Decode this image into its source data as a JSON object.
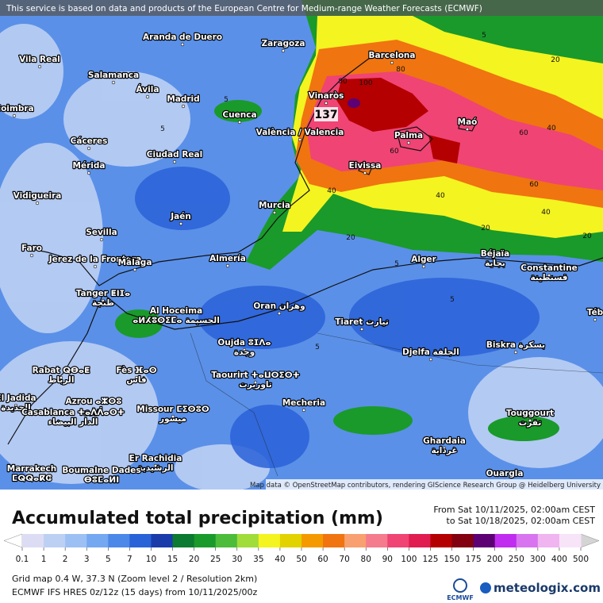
{
  "banner": "This service is based on data and products of the European Centre for Medium-range Weather Forecasts (ECMWF)",
  "map": {
    "max_label": "137",
    "credit": "Map data © OpenStreetMap contributors, rendering GIScience Research Group @ Heidelberg University",
    "cities": [
      {
        "name": "Aranda de Duero"
      },
      {
        "name": "Zaragoza"
      },
      {
        "name": "Vila Real"
      },
      {
        "name": "Barcelona"
      },
      {
        "name": "Salamanca"
      },
      {
        "name": "Ávila"
      },
      {
        "name": "Madrid"
      },
      {
        "name": "Vinaròs"
      },
      {
        "name": "Coimbra"
      },
      {
        "name": "Cuenca"
      },
      {
        "name": "Maó"
      },
      {
        "name": "València / Valencia"
      },
      {
        "name": "Palma"
      },
      {
        "name": "Cáceres"
      },
      {
        "name": "Ciudad Real"
      },
      {
        "name": "Mérida"
      },
      {
        "name": "Eivissa"
      },
      {
        "name": "Vidigueira"
      },
      {
        "name": "Murcia"
      },
      {
        "name": "Jaén"
      },
      {
        "name": "Sevilla"
      },
      {
        "name": "Faro"
      },
      {
        "name": "Jerez de la Frontera"
      },
      {
        "name": "Málaga"
      },
      {
        "name": "Almería"
      },
      {
        "name": "Alger"
      },
      {
        "name": "Béjaïa",
        "alt": "بجاية"
      },
      {
        "name": "Constantine",
        "alt": "قسنطينة"
      },
      {
        "name": "Tanger ⵟⵏⵊⴰ",
        "alt": "طنجة"
      },
      {
        "name": "Al Hoceima",
        "alt": "ⴰⵍⵃⵓⵙⵉⵎⴰ الحسيمة"
      },
      {
        "name": "Oran وهران"
      },
      {
        "name": "Tiaret تيارت"
      },
      {
        "name": "Oujda ⵓⵊⴷⴰ",
        "alt": "وجدة"
      },
      {
        "name": "Biskra بسكرة"
      },
      {
        "name": "Djelfa الجلفة"
      },
      {
        "name": "Rabat ⵕⴱⴰⵟ",
        "alt": "الرباط"
      },
      {
        "name": "Fès ⴼⴰⵙ",
        "alt": "فاس"
      },
      {
        "name": "Taourirt ⵜⴰⵡⵔⵉⵔⵜ",
        "alt": "تاوريرت"
      },
      {
        "name": "Azrou ⴰⵣⵔⵓ",
        "alt": "ازرو"
      },
      {
        "name": "Missour ⵎⵉⵙⵓⵔ",
        "alt": "ميسور"
      },
      {
        "name": "Mecheria"
      },
      {
        "name": "El Jadida",
        "alt": "الجديدة"
      },
      {
        "name": "Casablanca ⵜⴰⴷⴷⴰⵔⵜ",
        "alt": "الدار البيضاء"
      },
      {
        "name": "Touggourt",
        "alt": "تقرت"
      },
      {
        "name": "Ghardaia",
        "alt": "غرداية"
      },
      {
        "name": "Er Rachidia",
        "alt": "الرشيدية"
      },
      {
        "name": "Marrakech",
        "alt": "ⵎⵕⵕⴰⴽⵛ"
      },
      {
        "name": "Boumalne Dades",
        "alt": "ⴱⵓⵎⴰⵍⵏ"
      },
      {
        "name": "Ouargla"
      },
      {
        "name": "Téb"
      }
    ],
    "contour_labels": [
      "5",
      "5",
      "5",
      "20",
      "20",
      "40",
      "40",
      "40",
      "60",
      "60",
      "60",
      "80",
      "80",
      "100",
      "20",
      "5",
      "5",
      "5",
      "40",
      "20"
    ]
  },
  "legend": {
    "title": "Accumulated total precipitation (mm)",
    "period": [
      "From Sat 10/11/2025, 02:00am CEST",
      "to Sat 10/18/2025, 02:00am CEST"
    ],
    "levels": [
      "0.1",
      "1",
      "2",
      "3",
      "5",
      "7",
      "10",
      "15",
      "20",
      "25",
      "30",
      "35",
      "40",
      "50",
      "60",
      "70",
      "80",
      "90",
      "100",
      "125",
      "150",
      "175",
      "200",
      "250",
      "300",
      "400",
      "500"
    ],
    "colors": [
      "#ffffff",
      "#dcdcf4",
      "#bcd0f4",
      "#9cc0f4",
      "#74a8f0",
      "#4c88e8",
      "#2a62d8",
      "#1a3caa",
      "#0c7a30",
      "#1a9a2a",
      "#4cbc3a",
      "#a0dc3a",
      "#f4f420",
      "#e2d200",
      "#f49a00",
      "#f07410",
      "#f8a070",
      "#f47c8c",
      "#f04474",
      "#e01c50",
      "#b40000",
      "#820010",
      "#5c0074",
      "#c02cf0",
      "#d874f0",
      "#f0b4f0",
      "#f8e4f8",
      "#d4d4d4"
    ]
  },
  "footer": [
    "Grid map 0.4 W, 37.3 N (Zoom level 2 / Resolution 2km)",
    "ECMWF IFS HRES 0z/12z (15 days) from 10/11/2025/00z"
  ],
  "logos": [
    "ECMWF",
    "meteologix.com"
  ]
}
